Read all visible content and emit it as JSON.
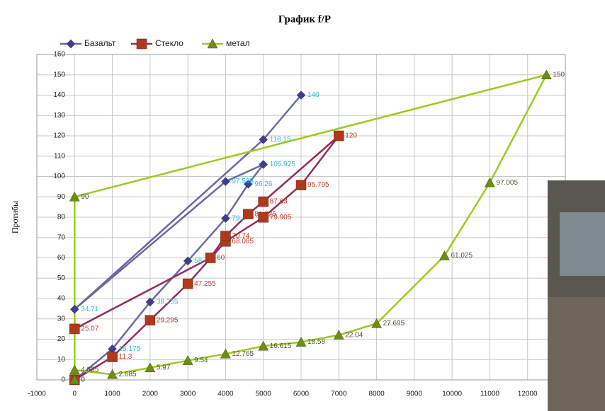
{
  "chart_data": {
    "type": "line",
    "title": "График f/P",
    "y_label": "Протибы",
    "xlim": [
      -1000,
      13000
    ],
    "xticks": [
      -1000,
      0,
      1000,
      2000,
      3000,
      4000,
      5000,
      6000,
      7000,
      8000,
      9000,
      10000,
      11000,
      12000
    ],
    "ylim": [
      0,
      160
    ],
    "yticks": [
      0,
      10,
      20,
      30,
      40,
      50,
      60,
      70,
      80,
      90,
      100,
      110,
      120,
      130,
      140,
      150,
      160
    ],
    "grid": true,
    "legend": "top-left",
    "series": [
      {
        "name": "Базальт",
        "color": "#6868a8",
        "marker": "diamond",
        "marker_color": "#3d3d96",
        "label_color": "#33b8dd",
        "x": [
          0,
          1000,
          2000,
          3000,
          4000,
          4600,
          5000,
          4000,
          0,
          5000,
          6000
        ],
        "values": [
          0,
          15.175,
          38.255,
          58.465,
          79.4,
          96.26,
          105.925,
          97.535,
          34.71,
          118.15,
          140
        ]
      },
      {
        "name": "Стекло",
        "color": "#962a5e",
        "marker": "square",
        "marker_color": "#b0391c",
        "label_color": "#c43a2c",
        "x": [
          0,
          1000,
          2000,
          3000,
          4000,
          5000,
          6000,
          7000,
          5000,
          4600,
          4000,
          3600,
          0
        ],
        "values": [
          0,
          11.3,
          29.295,
          47.255,
          68.085,
          79.905,
          95.795,
          120,
          87.63,
          81.525,
          70.74,
          60,
          25.07
        ]
      },
      {
        "name": "метал",
        "color": "#9acd1a",
        "marker": "triangle",
        "marker_color": "#6b8e14",
        "label_color": "#555533",
        "x": [
          0,
          1000,
          2000,
          3000,
          4000,
          5000,
          6000,
          7000,
          8000,
          9800,
          11000,
          12500,
          0,
          0
        ],
        "values": [
          4.835,
          2.685,
          5.97,
          9.54,
          12.765,
          16.615,
          18.58,
          22.04,
          27.695,
          61.025,
          97.005,
          150,
          90,
          0
        ]
      }
    ]
  }
}
